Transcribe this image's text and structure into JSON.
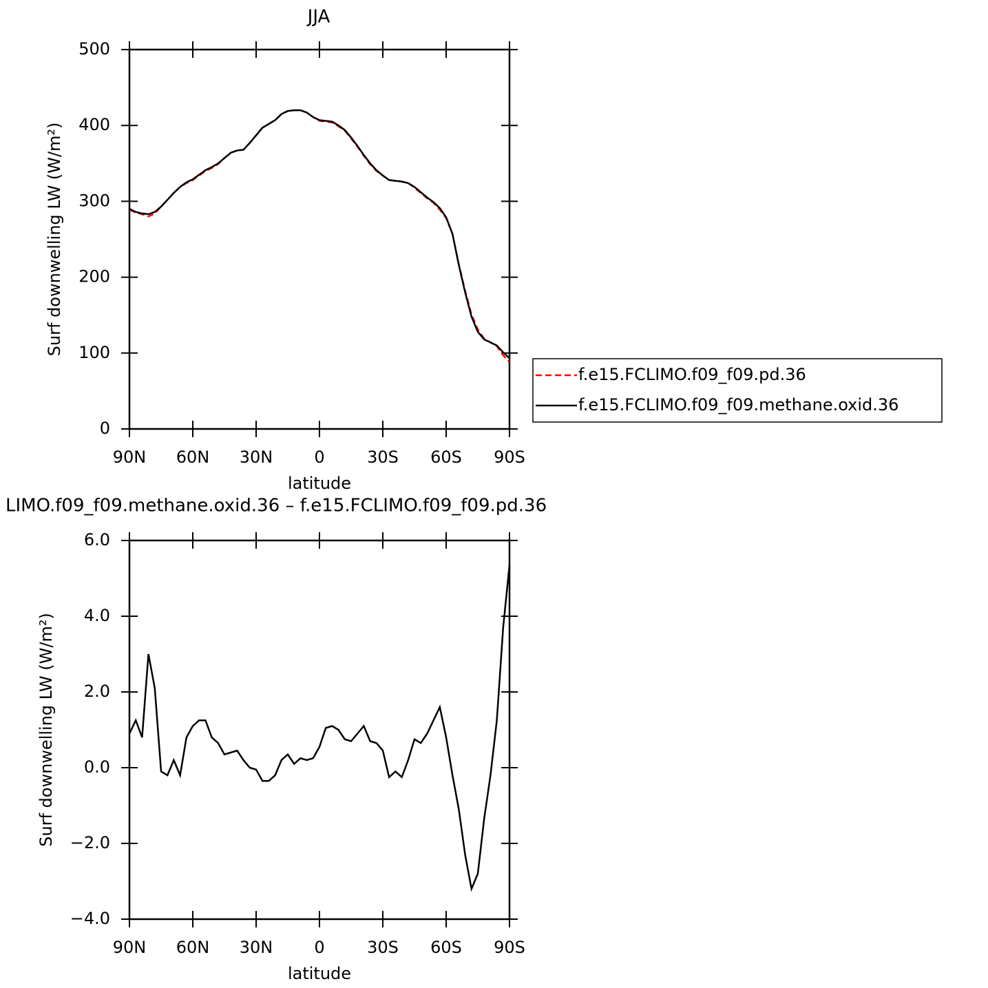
{
  "chart_data": [
    {
      "type": "line",
      "title": "JJA",
      "xlabel": "latitude",
      "ylabel": "Surf downwelling LW (W/m²)",
      "x": [
        90,
        87,
        84,
        81,
        78,
        75,
        72,
        69,
        66,
        63,
        60,
        57,
        54,
        51,
        48,
        45,
        42,
        39,
        36,
        33,
        30,
        27,
        24,
        21,
        18,
        15,
        12,
        9,
        6,
        3,
        0,
        -3,
        -6,
        -9,
        -12,
        -15,
        -18,
        -21,
        -24,
        -27,
        -30,
        -33,
        -36,
        -39,
        -42,
        -45,
        -48,
        -51,
        -54,
        -57,
        -60,
        -63,
        -66,
        -69,
        -72,
        -75,
        -78,
        -81,
        -84,
        -87,
        -90
      ],
      "series": [
        {
          "name": "f.e15.FCLIMO.f09_f09.pd.36",
          "color": "#ff0000",
          "dashed": true,
          "values": [
            289,
            285,
            283,
            280,
            284,
            293,
            302,
            311,
            319,
            324,
            328,
            334,
            340,
            344,
            349,
            357,
            364,
            367,
            368,
            377,
            387,
            397,
            402,
            407,
            415,
            419,
            420,
            420,
            417,
            411,
            406,
            405,
            404,
            399,
            393,
            383,
            372,
            360,
            349,
            340,
            334,
            328,
            327,
            326,
            324,
            318,
            311,
            304,
            298,
            289,
            278,
            257,
            217,
            182,
            151,
            131,
            119,
            114,
            109,
            97,
            88
          ]
        },
        {
          "name": "f.e15.FCLIMO.f09_f09.methane.oxid.36",
          "color": "#000000",
          "dashed": false,
          "values": [
            290,
            286,
            284,
            283,
            286,
            293,
            302,
            311,
            319,
            325,
            329,
            335,
            341,
            345,
            350,
            357,
            364,
            367,
            368,
            377,
            387,
            397,
            402,
            407,
            415,
            419,
            420,
            420,
            417,
            411,
            407,
            406,
            405,
            400,
            394,
            384,
            373,
            361,
            350,
            341,
            334,
            328,
            327,
            326,
            324,
            319,
            312,
            305,
            299,
            291,
            279,
            257,
            216,
            180,
            148,
            128,
            118,
            114,
            110,
            101,
            93
          ]
        }
      ],
      "xlim": [
        90,
        -90
      ],
      "xticks": [
        {
          "value": 90,
          "label": "90N"
        },
        {
          "value": 60,
          "label": "60N"
        },
        {
          "value": 30,
          "label": "30N"
        },
        0,
        {
          "value": -30,
          "label": "30S"
        },
        {
          "value": -60,
          "label": "60S"
        },
        {
          "value": -90,
          "label": "90S"
        }
      ],
      "ylim": [
        0,
        500
      ],
      "yticks": [
        0,
        100,
        200,
        300,
        400,
        500
      ],
      "legend": "right"
    },
    {
      "type": "line",
      "title": "LIMO.f09_f09.methane.oxid.36 – f.e15.FCLIMO.f09_f09.pd.36",
      "xlabel": "latitude",
      "ylabel": "Surf downwelling LW (W/m²)",
      "x": [
        90,
        87,
        84,
        81,
        78,
        75,
        72,
        69,
        66,
        63,
        60,
        57,
        54,
        51,
        48,
        45,
        42,
        39,
        36,
        33,
        30,
        27,
        24,
        21,
        18,
        15,
        12,
        9,
        6,
        3,
        0,
        -3,
        -6,
        -9,
        -12,
        -15,
        -18,
        -21,
        -24,
        -27,
        -30,
        -33,
        -36,
        -39,
        -42,
        -45,
        -48,
        -51,
        -54,
        -57,
        -60,
        -63,
        -66,
        -69,
        -72,
        -75,
        -78,
        -81,
        -84,
        -87,
        -90
      ],
      "series": [
        {
          "color": "#000000",
          "dashed": false,
          "values": [
            0.9,
            1.25,
            0.8,
            3.0,
            2.1,
            -0.1,
            -0.2,
            0.2,
            -0.2,
            0.8,
            1.1,
            1.25,
            1.25,
            0.8,
            0.65,
            0.35,
            0.4,
            0.45,
            0.2,
            0.0,
            -0.05,
            -0.35,
            -0.35,
            -0.2,
            0.2,
            0.35,
            0.1,
            0.25,
            0.2,
            0.25,
            0.55,
            1.05,
            1.1,
            1.0,
            0.75,
            0.7,
            0.9,
            1.1,
            0.7,
            0.65,
            0.45,
            -0.25,
            -0.1,
            -0.25,
            0.2,
            0.75,
            0.65,
            0.9,
            1.25,
            1.6,
            0.8,
            -0.2,
            -1.1,
            -2.3,
            -3.2,
            -2.8,
            -1.35,
            -0.2,
            1.25,
            3.7,
            5.35
          ]
        }
      ],
      "xlim": [
        90,
        -90
      ],
      "xticks": [
        {
          "value": 90,
          "label": "90N"
        },
        {
          "value": 60,
          "label": "60N"
        },
        {
          "value": 30,
          "label": "30N"
        },
        0,
        {
          "value": -30,
          "label": "30S"
        },
        {
          "value": -60,
          "label": "60S"
        },
        {
          "value": -90,
          "label": "90S"
        }
      ],
      "ylim": [
        -4,
        6
      ],
      "yticks": [
        {
          "value": -4,
          "label": "−4.0"
        },
        {
          "value": -2,
          "label": "−2.0"
        },
        {
          "value": 0,
          "label": "0.0"
        },
        {
          "value": 2,
          "label": "2.0"
        },
        {
          "value": 4,
          "label": "4.0"
        },
        {
          "value": 6,
          "label": "6.0"
        }
      ]
    }
  ]
}
